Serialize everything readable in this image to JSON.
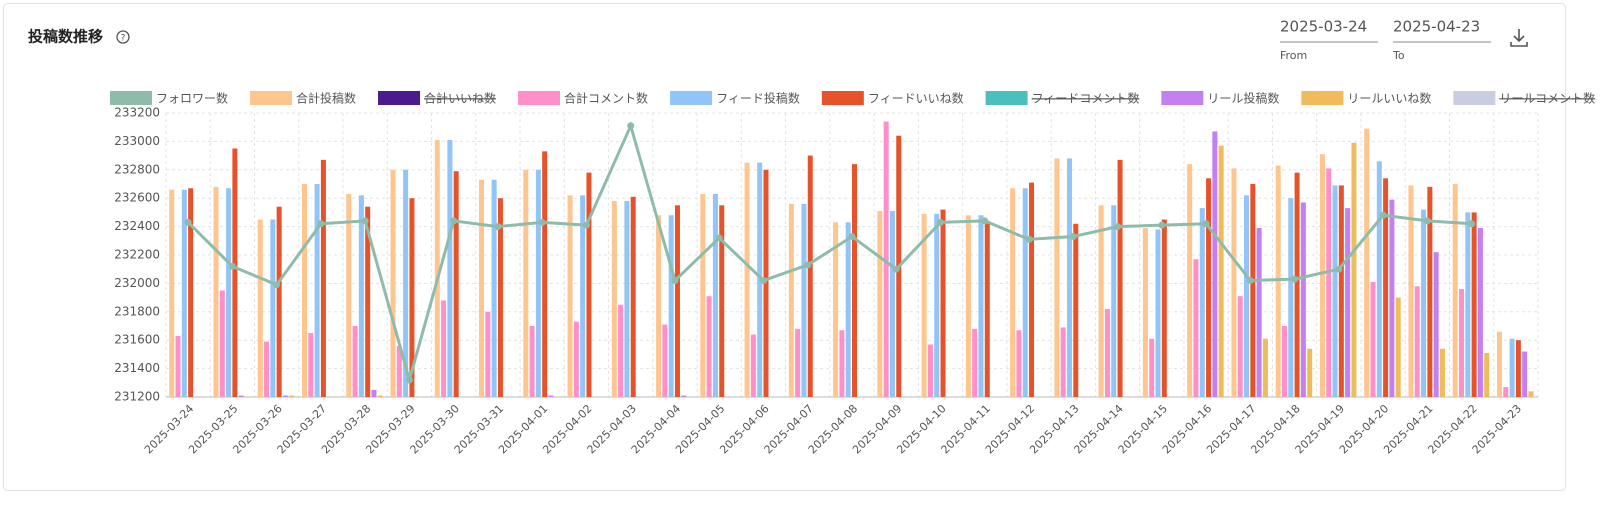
{
  "chart_data": {
    "type": "bar",
    "title": "投稿数推移",
    "categories": [
      "2025-03-24",
      "2025-03-25",
      "2025-03-26",
      "2025-03-27",
      "2025-03-28",
      "2025-03-29",
      "2025-03-30",
      "2025-03-31",
      "2025-04-01",
      "2025-04-02",
      "2025-04-03",
      "2025-04-04",
      "2025-04-05",
      "2025-04-06",
      "2025-04-07",
      "2025-04-08",
      "2025-04-09",
      "2025-04-10",
      "2025-04-11",
      "2025-04-12",
      "2025-04-13",
      "2025-04-14",
      "2025-04-15",
      "2025-04-16",
      "2025-04-17",
      "2025-04-18",
      "2025-04-19",
      "2025-04-20",
      "2025-04-21",
      "2025-04-22",
      "2025-04-23"
    ],
    "series": [
      {
        "name": "フォロワー数",
        "type": "line",
        "color": "#8fbcaa",
        "values": [
          232430,
          232120,
          231990,
          232420,
          232440,
          231320,
          232440,
          232400,
          232430,
          232410,
          233110,
          232020,
          232320,
          232020,
          232130,
          232330,
          232100,
          232430,
          232440,
          232310,
          232330,
          232400,
          232410,
          232420,
          232020,
          232030,
          232100,
          232480,
          232440,
          232420,
          null
        ]
      },
      {
        "name": "合計投稿数",
        "color": "#ffc58f",
        "values": [
          232660,
          232680,
          232450,
          232700,
          232630,
          232800,
          233010,
          232730,
          232800,
          232620,
          232580,
          232480,
          232630,
          232850,
          232560,
          232430,
          232510,
          232490,
          232480,
          232670,
          232880,
          232550,
          232390,
          232840,
          232810,
          232830,
          232910,
          233090,
          232690,
          232700,
          231660
        ]
      },
      {
        "name": "合計いいね数",
        "color": "#4b1a8c",
        "hidden": true
      },
      {
        "name": "合計コメント数",
        "color": "#ff8fc8",
        "values": [
          231630,
          231950,
          231590,
          231650,
          231700,
          231560,
          231880,
          231800,
          231700,
          231730,
          231850,
          231710,
          231910,
          231640,
          231680,
          231670,
          233140,
          231570,
          231680,
          231670,
          231690,
          231820,
          231610,
          232170,
          231910,
          231700,
          232810,
          232010,
          231980,
          231960,
          231270
        ]
      },
      {
        "name": "フィード投稿数",
        "color": "#91c4f7",
        "values": [
          232660,
          232670,
          232450,
          232700,
          232620,
          232800,
          233010,
          232730,
          232800,
          232620,
          232580,
          232480,
          232630,
          232850,
          232560,
          232430,
          232510,
          232490,
          232480,
          232670,
          232880,
          232550,
          232380,
          232530,
          232620,
          232600,
          232690,
          232860,
          232520,
          232500,
          231610
        ]
      },
      {
        "name": "フィードいいね数",
        "color": "#e8522a",
        "values": [
          232670,
          232950,
          232540,
          232870,
          232540,
          232600,
          232790,
          232600,
          232930,
          232780,
          232610,
          232550,
          232550,
          232800,
          232900,
          232840,
          233040,
          232520,
          232440,
          232710,
          232420,
          232870,
          232450,
          232740,
          232700,
          232780,
          232690,
          232740,
          232680,
          232500,
          231600
        ]
      },
      {
        "name": "フィードコメント数",
        "color": "#4bbfbf",
        "hidden": true
      },
      {
        "name": "リール投稿数",
        "color": "#c47ff0",
        "values": [
          null,
          231210,
          231210,
          null,
          231250,
          null,
          null,
          null,
          231210,
          null,
          null,
          231210,
          null,
          null,
          null,
          null,
          null,
          null,
          null,
          null,
          null,
          null,
          null,
          233070,
          232390,
          232570,
          232530,
          232590,
          232220,
          232390,
          231520
        ]
      },
      {
        "name": "リールいいね数",
        "color": "#f0bb5a",
        "values": [
          null,
          null,
          231210,
          null,
          231210,
          null,
          null,
          null,
          null,
          null,
          null,
          null,
          null,
          null,
          null,
          null,
          null,
          null,
          null,
          null,
          null,
          null,
          null,
          232970,
          231610,
          231540,
          232990,
          231900,
          231540,
          231510,
          231240
        ]
      },
      {
        "name": "リールコメント数",
        "color": "#c9cde0",
        "hidden": true
      }
    ],
    "ylim": [
      231200,
      233200
    ],
    "yticks": [
      231200,
      231400,
      231600,
      231800,
      232000,
      232200,
      232400,
      232600,
      232800,
      233000,
      233200
    ],
    "grid": true
  },
  "controls": {
    "from": {
      "value": "2025-03-24",
      "label": "From"
    },
    "to": {
      "value": "2025-04-23",
      "label": "To"
    }
  }
}
